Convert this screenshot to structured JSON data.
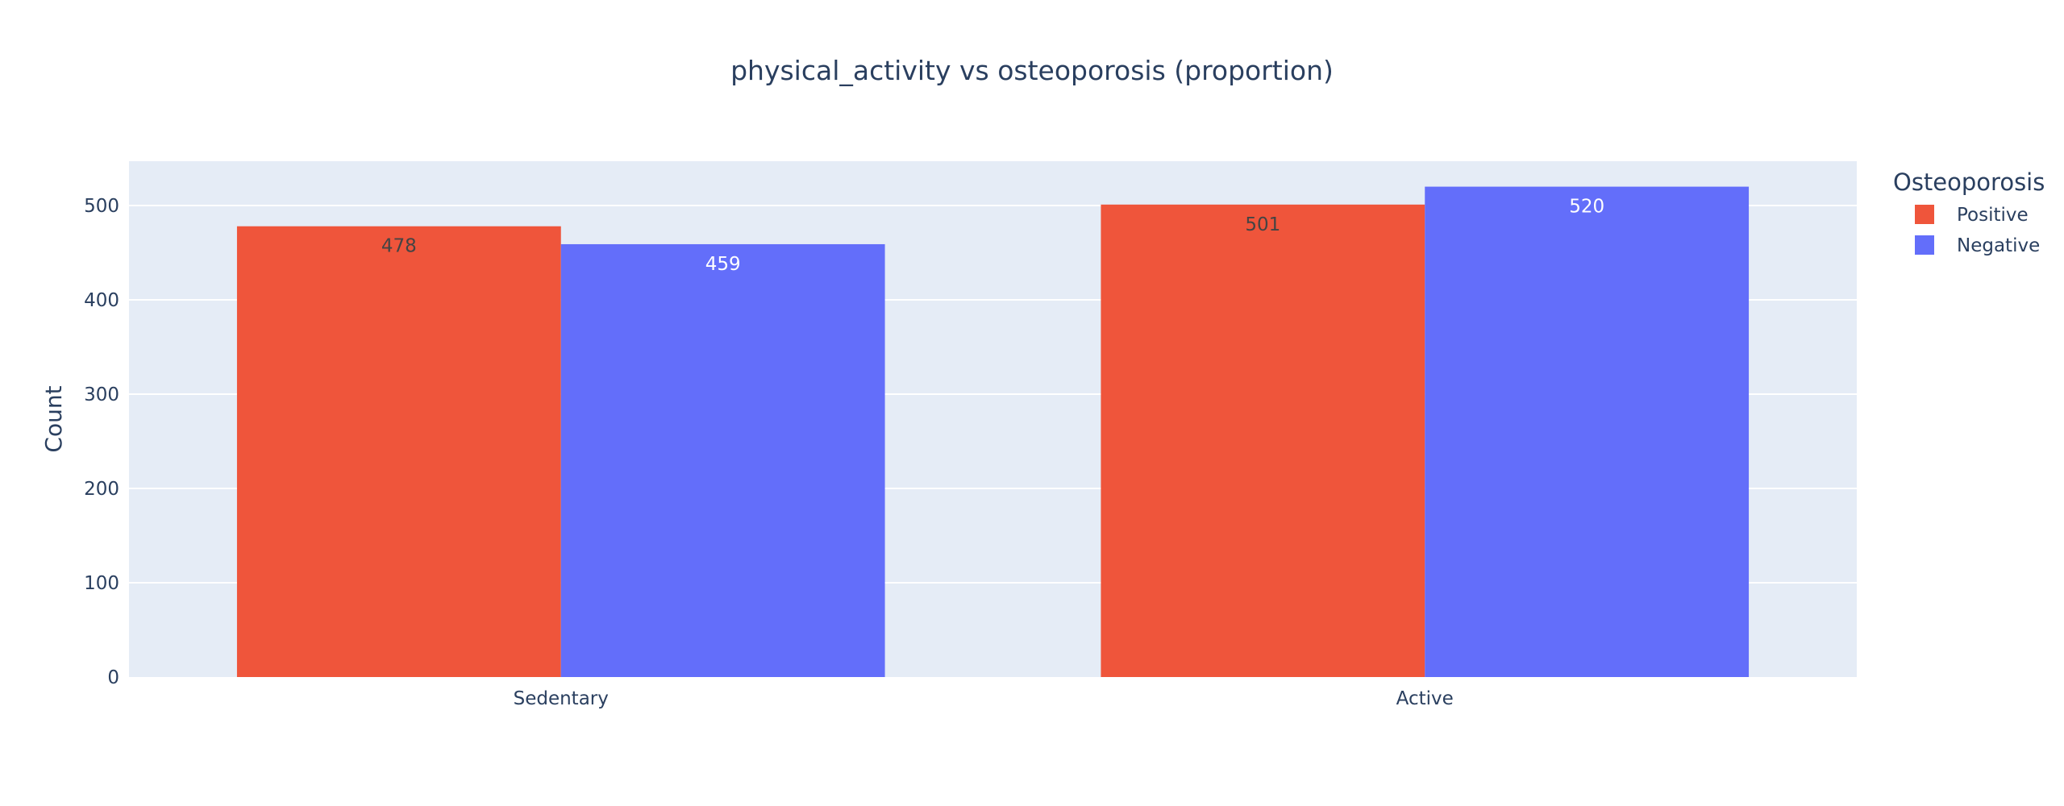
{
  "chart_data": {
    "type": "bar",
    "title": "physical_activity vs osteoporosis (proportion)",
    "xlabel": "",
    "ylabel": "Count",
    "categories": [
      "Sedentary",
      "Active"
    ],
    "series": [
      {
        "name": "Positive",
        "values": [
          478,
          501
        ],
        "color": "#ef553b",
        "label_color": "#444444"
      },
      {
        "name": "Negative",
        "values": [
          459,
          520
        ],
        "color": "#636efa",
        "label_color": "#ffffff"
      }
    ],
    "ylim": [
      0,
      547
    ],
    "yticks": [
      0,
      100,
      200,
      300,
      400,
      500
    ],
    "legend": {
      "title": "Osteoporosis",
      "position": "top-right"
    },
    "grid": true,
    "plot_background": "#e5ecf6",
    "grid_color": "#ffffff"
  }
}
